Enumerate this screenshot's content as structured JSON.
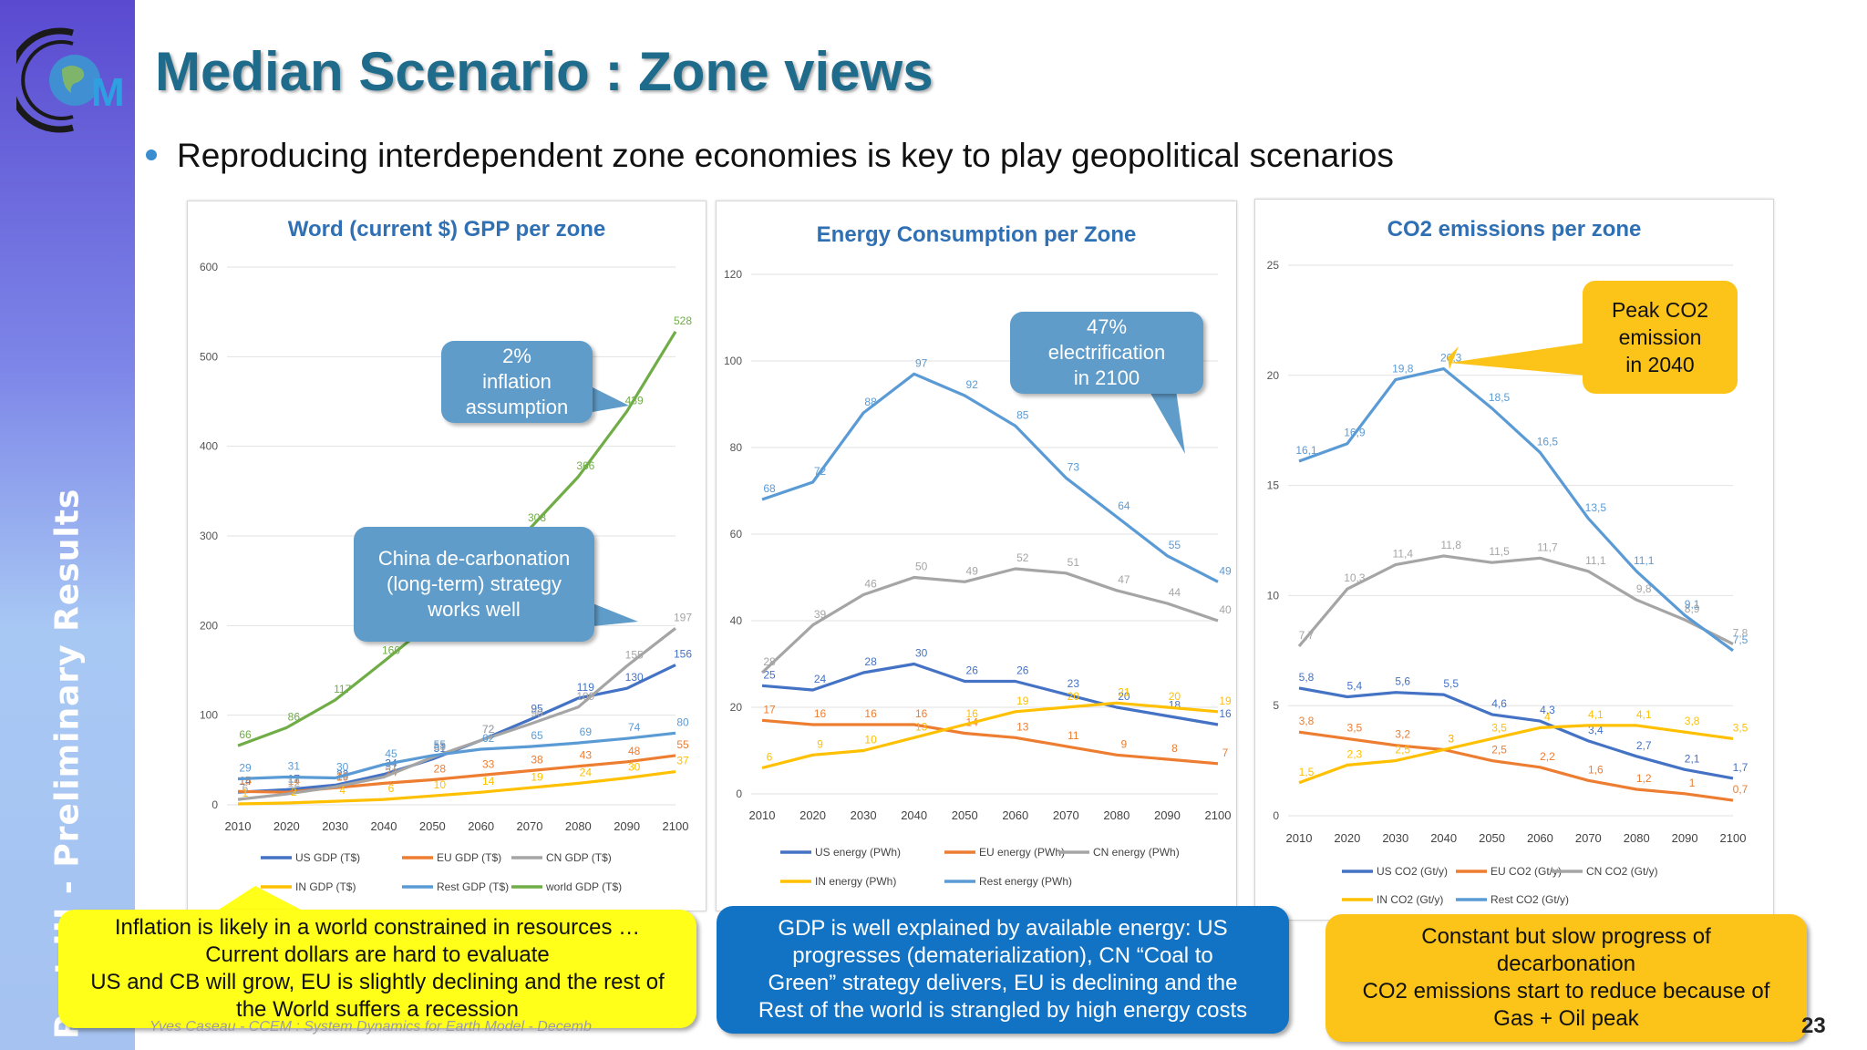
{
  "slide": {
    "sidebar_label": "Part III - Preliminary Results",
    "logo_letter": "M",
    "title": "Median Scenario : Zone  views",
    "subtitle": "Reproducing interdependent zone economies is key to play geopolitical scenarios",
    "footer": "Yves Caseau - CCEM : System Dynamics for Earth Model - Decemb",
    "page_number": "23"
  },
  "colors": {
    "US": "#4472c4",
    "EU": "#ed7d31",
    "CN": "#a5a5a5",
    "IN": "#ffc000",
    "Rest": "#5b9bd5",
    "world": "#70ad47",
    "title_blue": "#1f6b8c",
    "callout_blue": "#5f9cc9",
    "gold": "#fcc419"
  },
  "callouts": {
    "inflation": "2%\ninflation\nassumption",
    "china": "China de-carbonation\n(long-term) strategy\nworks well",
    "electrification": "47%\nelectrification\nin 2100",
    "peak": "Peak CO2\nemission\nin 2040"
  },
  "notes": {
    "gdp": "Inflation is likely in a world constrained in resources …\nCurrent dollars are hard to evaluate\nUS and CB will grow, EU is slightly declining and the rest of\nthe World suffers a recession",
    "energy": "GDP is well explained by available energy: US\nprogresses (dematerialization), CN “Coal to\nGreen” strategy delivers, EU is declining and the\nRest of the world is strangled by high energy costs",
    "co2": "Constant but slow progress of\ndecarbonation\nCO2 emissions start to reduce because of\nGas + Oil peak"
  },
  "chart_data": [
    {
      "type": "line",
      "title": "Word (current $) GPP per zone",
      "x": [
        "2010",
        "2020",
        "2030",
        "2040",
        "2050",
        "2060",
        "2070",
        "2080",
        "2090",
        "2100"
      ],
      "yticks": [
        "0",
        "100",
        "200",
        "300",
        "400",
        "500",
        "600"
      ],
      "ylim": [
        0,
        600
      ],
      "legend_position": "bottom",
      "series": [
        {
          "name": "US GDP (T$)",
          "key": "US",
          "values": [
            14,
            17,
            22,
            34,
            51,
            72,
            95,
            119,
            130,
            156
          ]
        },
        {
          "name": "EU GDP (T$)",
          "key": "EU",
          "values": [
            15,
            14,
            19,
            24,
            28,
            33,
            38,
            43,
            48,
            55
          ]
        },
        {
          "name": "CN GDP (T$)",
          "key": "CN",
          "values": [
            6,
            12,
            20,
            31,
            53,
            72,
            90,
            109,
            155,
            197
          ]
        },
        {
          "name": "IN GDP (T$)",
          "key": "IN",
          "values": [
            1,
            2,
            4,
            6,
            10,
            14,
            19,
            24,
            30,
            37
          ]
        },
        {
          "name": "Rest GDP (T$)",
          "key": "Rest",
          "values": [
            29,
            31,
            30,
            45,
            55,
            62,
            65,
            69,
            74,
            80
          ]
        },
        {
          "name": "world GDP (T$)",
          "key": "world",
          "values": [
            66,
            86,
            117,
            160,
            204,
            256,
            308,
            366,
            439,
            528
          ]
        }
      ]
    },
    {
      "type": "line",
      "title": "Energy Consumption per Zone",
      "x": [
        "2010",
        "2020",
        "2030",
        "2040",
        "2050",
        "2060",
        "2070",
        "2080",
        "2090",
        "2100"
      ],
      "yticks": [
        "0",
        "20",
        "40",
        "60",
        "80",
        "100",
        "120"
      ],
      "ylim": [
        0,
        120
      ],
      "legend_position": "bottom",
      "series": [
        {
          "name": "US energy (PWh)",
          "key": "US",
          "values": [
            25,
            24,
            28,
            30,
            26,
            26,
            23,
            20,
            18,
            16
          ]
        },
        {
          "name": "EU energy (PWh)",
          "key": "EU",
          "values": [
            17,
            16,
            16,
            16,
            14,
            13,
            11,
            9,
            8,
            7
          ]
        },
        {
          "name": "CN energy (PWh)",
          "key": "CN",
          "values": [
            28,
            39,
            46,
            50,
            49,
            52,
            51,
            47,
            44,
            40
          ]
        },
        {
          "name": "IN energy (PWh)",
          "key": "IN",
          "values": [
            6,
            9,
            10,
            13,
            16,
            19,
            20,
            21,
            20,
            19
          ]
        },
        {
          "name": "Rest energy (PWh)",
          "key": "Rest",
          "values": [
            68,
            72,
            88,
            97,
            92,
            85,
            73,
            64,
            55,
            49
          ]
        }
      ]
    },
    {
      "type": "line",
      "title": "CO2 emissions per zone",
      "x": [
        "2010",
        "2020",
        "2030",
        "2040",
        "2050",
        "2060",
        "2070",
        "2080",
        "2090",
        "2100"
      ],
      "yticks": [
        "0",
        "5",
        "10",
        "15",
        "20",
        "25"
      ],
      "ylim": [
        0,
        25
      ],
      "legend_position": "bottom",
      "series": [
        {
          "name": "US CO2 (Gt/y)",
          "key": "US",
          "values": [
            5.8,
            5.4,
            5.6,
            5.5,
            4.6,
            4.3,
            3.4,
            2.7,
            2.1,
            1.7
          ]
        },
        {
          "name": "EU CO2 (Gt/y)",
          "key": "EU",
          "values": [
            3.8,
            3.5,
            3.2,
            3,
            2.5,
            2.2,
            1.6,
            1.2,
            1,
            0.7
          ]
        },
        {
          "name": "CN CO2 (Gt/y)",
          "key": "CN",
          "values": [
            7.7,
            10.3,
            11.4,
            11.8,
            11.5,
            11.7,
            11.1,
            9.8,
            8.9,
            7.8
          ]
        },
        {
          "name": "IN CO2 (Gt/y)",
          "key": "IN",
          "values": [
            1.5,
            2.3,
            2.5,
            3,
            3.5,
            4,
            4.1,
            4.1,
            3.8,
            3.5
          ]
        },
        {
          "name": "Rest CO2 (Gt/y)",
          "key": "Rest",
          "values": [
            16.1,
            16.9,
            19.8,
            20.3,
            18.5,
            16.5,
            13.5,
            11.1,
            9.1,
            7.5
          ]
        }
      ]
    }
  ]
}
